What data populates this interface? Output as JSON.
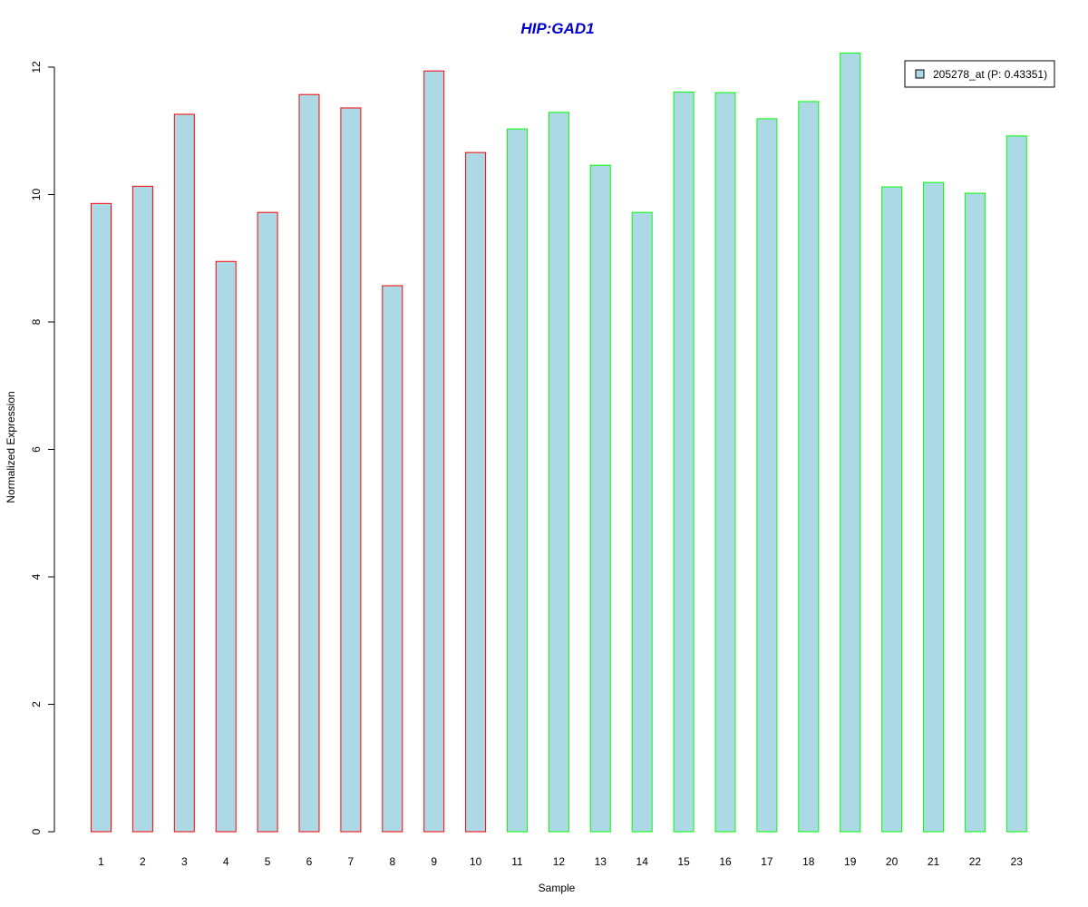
{
  "chart_data": {
    "type": "bar",
    "title": "HIP:GAD1",
    "xlabel": "Sample",
    "ylabel": "Normalized Expression",
    "categories": [
      "1",
      "2",
      "3",
      "4",
      "5",
      "6",
      "7",
      "8",
      "9",
      "10",
      "11",
      "12",
      "13",
      "14",
      "15",
      "16",
      "17",
      "18",
      "19",
      "20",
      "21",
      "22",
      "23"
    ],
    "series": [
      {
        "name": "205278_at (P: 0.43351)",
        "values": [
          9.86,
          10.13,
          11.26,
          8.95,
          9.72,
          11.57,
          11.36,
          8.57,
          11.94,
          10.66,
          11.03,
          11.29,
          10.46,
          9.72,
          11.61,
          11.6,
          11.19,
          11.46,
          12.22,
          10.12,
          10.19,
          10.02,
          10.92
        ]
      }
    ],
    "ylim": [
      0,
      12.3
    ],
    "yticks": [
      "0",
      "2",
      "4",
      "6",
      "8",
      "10",
      "12"
    ],
    "bar_fill_color": "#add8e6",
    "bar_border_colors": [
      "#ff0000",
      "#ff0000",
      "#ff0000",
      "#ff0000",
      "#ff0000",
      "#ff0000",
      "#ff0000",
      "#ff0000",
      "#ff0000",
      "#ff0000",
      "#00ff00",
      "#00ff00",
      "#00ff00",
      "#00ff00",
      "#00ff00",
      "#00ff00",
      "#00ff00",
      "#00ff00",
      "#00ff00",
      "#00ff00",
      "#00ff00",
      "#00ff00",
      "#00ff00"
    ],
    "title_color": "#0000cd",
    "legend_placement": "top-right",
    "grid": false
  }
}
